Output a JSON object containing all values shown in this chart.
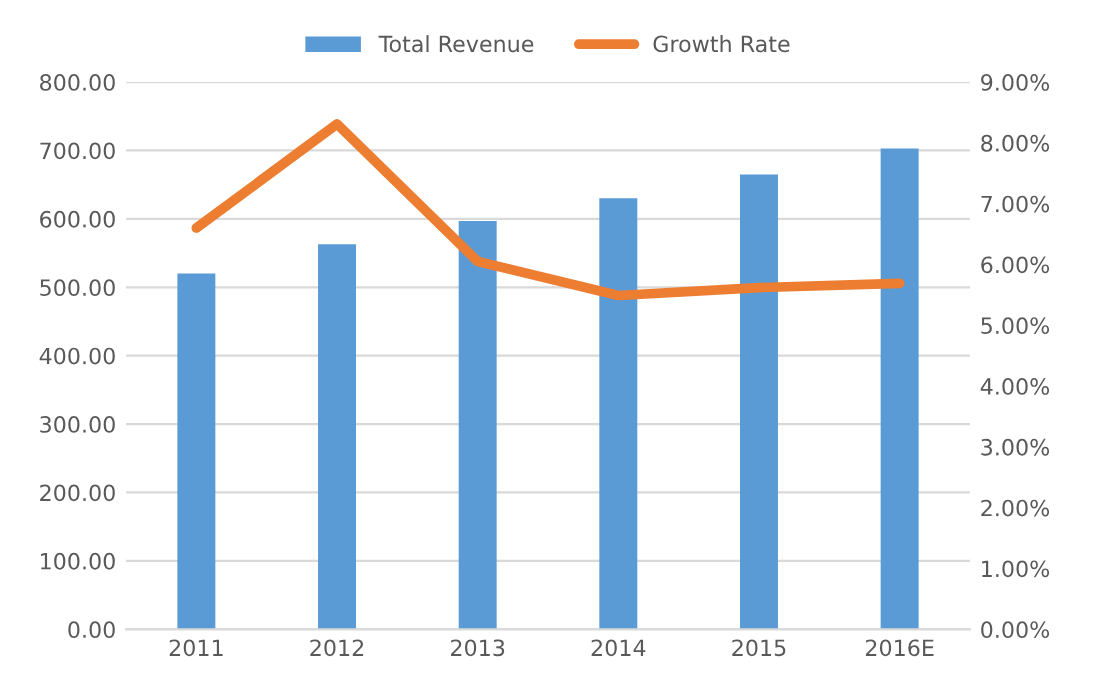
{
  "chart_data": {
    "type": "bar",
    "categories": [
      "2011",
      "2012",
      "2013",
      "2014",
      "2015",
      "2016E"
    ],
    "series": [
      {
        "name": "Total Revenue",
        "color": "#5b9bd5",
        "values": [
          520,
          563,
          597,
          630,
          665,
          703
        ]
      },
      {
        "name": "Growth Rate",
        "type": "line",
        "axis": "y2",
        "color": "#ed7d31",
        "marker": "none",
        "values": [
          6.6,
          8.31,
          6.05,
          5.49,
          5.62,
          5.69
        ]
      }
    ],
    "ylim": [
      0,
      800
    ],
    "yticks": [
      {
        "value": 0,
        "label": "0.00"
      },
      {
        "value": 100,
        "label": "100.00"
      },
      {
        "value": 200,
        "label": "200.00"
      },
      {
        "value": 300,
        "label": "300.00"
      },
      {
        "value": 400,
        "label": "400.00"
      },
      {
        "value": 500,
        "label": "500.00"
      },
      {
        "value": 600,
        "label": "600.00"
      },
      {
        "value": 700,
        "label": "700.00"
      },
      {
        "value": 800,
        "label": "800.00"
      }
    ],
    "y2lim": [
      0,
      9
    ],
    "y2ticks": [
      {
        "value": 0,
        "label": "0.00%"
      },
      {
        "value": 1,
        "label": "1.00%"
      },
      {
        "value": 2,
        "label": "2.00%"
      },
      {
        "value": 3,
        "label": "3.00%"
      },
      {
        "value": 4,
        "label": "4.00%"
      },
      {
        "value": 5,
        "label": "5.00%"
      },
      {
        "value": 6,
        "label": "6.00%"
      },
      {
        "value": 7,
        "label": "7.00%"
      },
      {
        "value": 8,
        "label": "8.00%"
      },
      {
        "value": 9,
        "label": "9.00%"
      }
    ],
    "grid": "y",
    "legend": "top"
  }
}
